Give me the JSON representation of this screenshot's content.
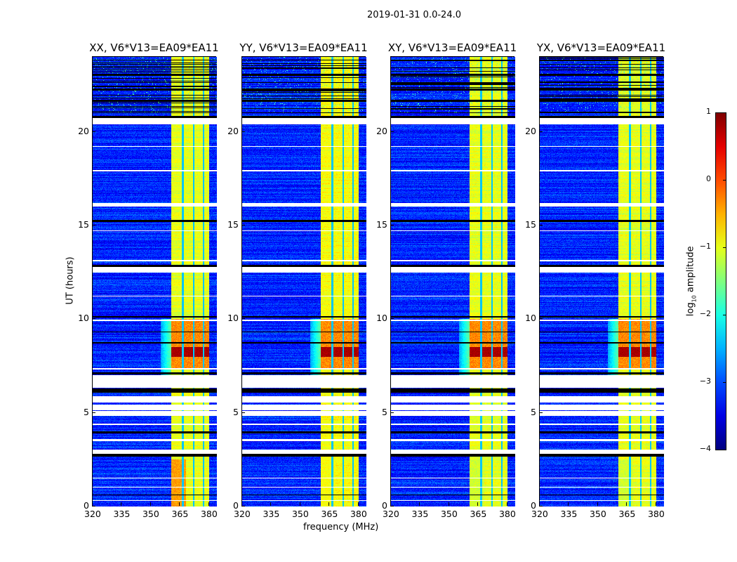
{
  "chart_data": {
    "type": "heatmap",
    "title": "2019-01-31 0.0-24.0",
    "xlabel": "frequency (MHz)",
    "ylabel": "UT (hours)",
    "xlim": [
      320,
      384
    ],
    "ylim": [
      0,
      24
    ],
    "xticks": [
      "320",
      "335",
      "350",
      "365",
      "380"
    ],
    "yticks": [
      "0",
      "5",
      "10",
      "15",
      "20"
    ],
    "panels": [
      {
        "title": "XX, V6*V13=EA09*EA11",
        "band_level": -1.0,
        "early_level": -0.4
      },
      {
        "title": "YY, V6*V13=EA09*EA11",
        "band_level": -0.9,
        "early_level": -0.9
      },
      {
        "title": "XY, V6*V13=EA09*EA11",
        "band_level": -1.0,
        "early_level": -1.1
      },
      {
        "title": "YX, V6*V13=EA09*EA11",
        "band_level": -1.0,
        "early_level": -1.1
      }
    ],
    "background_level": -3.2,
    "bright_band_mhz": [
      360.5,
      380
    ],
    "band_dividers_mhz": [
      366.5,
      372,
      377
    ],
    "strong_rfi_hours": [
      8.0,
      8.5
    ],
    "flagged_hours": [
      [
        6.33,
        7.0
      ],
      [
        5.55,
        5.9
      ],
      [
        5.13,
        5.43
      ],
      [
        4.83,
        5.1
      ],
      [
        2.8,
        3.03
      ],
      [
        16.0,
        16.2
      ],
      [
        12.5,
        12.8
      ],
      [
        20.4,
        20.75
      ],
      [
        7.3,
        7.4
      ],
      [
        3.5,
        3.6
      ],
      [
        4.35,
        4.42
      ],
      [
        1.0,
        1.05
      ],
      [
        1.5,
        1.55
      ],
      [
        0.3,
        0.35
      ],
      [
        9.9,
        9.97
      ],
      [
        13.1,
        13.15
      ],
      [
        17.9,
        17.95
      ],
      [
        14.7,
        14.75
      ],
      [
        19.2,
        19.25
      ],
      [
        11.2,
        11.25
      ]
    ],
    "blanked_hours": [
      [
        6.07,
        6.3
      ],
      [
        3.9,
        4.0
      ],
      [
        2.66,
        2.8
      ],
      [
        7.05,
        7.15
      ],
      [
        8.7,
        8.78
      ],
      [
        10.1,
        10.15
      ],
      [
        12.8,
        12.9
      ],
      [
        15.2,
        15.3
      ],
      [
        20.75,
        20.85
      ],
      [
        21.0,
        21.05
      ],
      [
        21.6,
        21.7
      ],
      [
        22.2,
        22.3
      ],
      [
        22.6,
        22.65
      ],
      [
        23.0,
        23.1
      ],
      [
        23.4,
        23.45
      ],
      [
        23.8,
        23.85
      ],
      [
        9.3,
        9.35
      ],
      [
        0.6,
        0.65
      ]
    ],
    "colorbar": {
      "label": "log10 amplitude",
      "label_main": "log",
      "label_sub": "10",
      "label_rest": " amplitude",
      "range": [
        -4,
        1
      ],
      "ticks": [
        "1",
        "0",
        "−1",
        "−2",
        "−3",
        "−4"
      ],
      "colormap": "jet"
    }
  }
}
